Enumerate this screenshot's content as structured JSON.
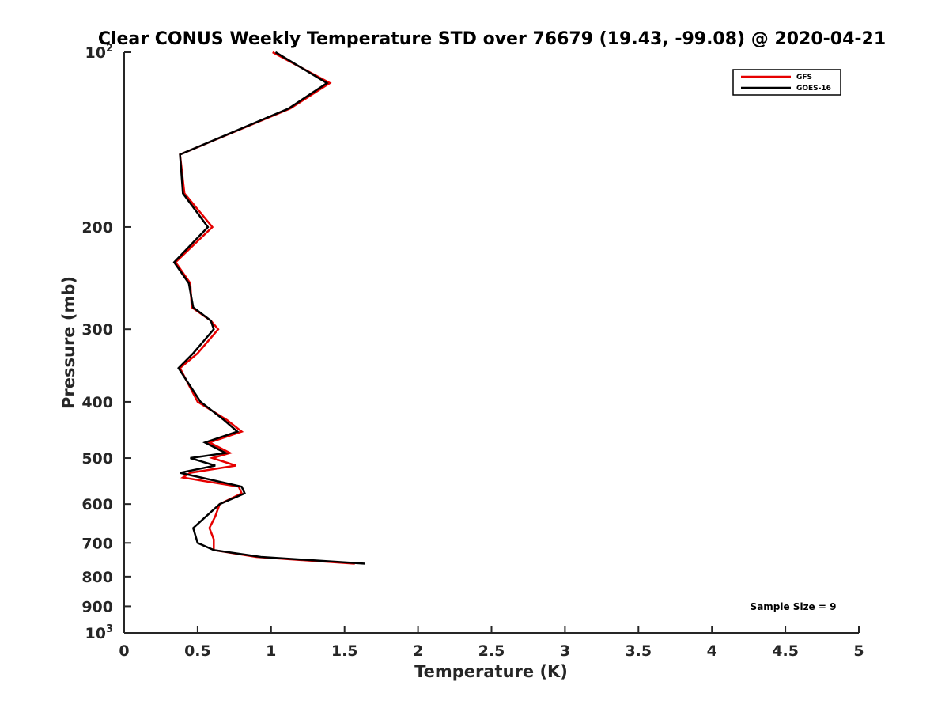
{
  "chart_data": {
    "type": "line",
    "title": "Clear CONUS Weekly Temperature STD over 76679 (19.43, -99.08) @ 2020-04-21",
    "xlabel": "Temperature (K)",
    "ylabel": "Pressure (mb)",
    "xlim": [
      0,
      5
    ],
    "ylim": [
      100,
      1000
    ],
    "y_scale": "log",
    "y_reversed": true,
    "grid": false,
    "legend_position": "top-right",
    "x_ticks": [
      "0",
      "0.5",
      "1",
      "1.5",
      "2",
      "2.5",
      "3",
      "3.5",
      "4",
      "4.5",
      "5"
    ],
    "y_ticks": [
      {
        "value": 100,
        "base": "10",
        "exp": "2"
      },
      {
        "value": 200,
        "label": "200"
      },
      {
        "value": 300,
        "label": "300"
      },
      {
        "value": 400,
        "label": "400"
      },
      {
        "value": 500,
        "label": "500"
      },
      {
        "value": 600,
        "label": "600"
      },
      {
        "value": 700,
        "label": "700"
      },
      {
        "value": 800,
        "label": "800"
      },
      {
        "value": 900,
        "label": "900"
      },
      {
        "value": 1000,
        "base": "10",
        "exp": "3"
      }
    ],
    "annotation": "Sample Size = 9",
    "series": [
      {
        "name": "GFS",
        "color": "#e60000",
        "points": [
          [
            1.01,
            100
          ],
          [
            1.4,
            113
          ],
          [
            1.13,
            125
          ],
          [
            0.38,
            150
          ],
          [
            0.41,
            175
          ],
          [
            0.6,
            200
          ],
          [
            0.35,
            230
          ],
          [
            0.45,
            250
          ],
          [
            0.46,
            275
          ],
          [
            0.59,
            290
          ],
          [
            0.64,
            300
          ],
          [
            0.5,
            330
          ],
          [
            0.38,
            350
          ],
          [
            0.5,
            400
          ],
          [
            0.7,
            430
          ],
          [
            0.8,
            450
          ],
          [
            0.58,
            470
          ],
          [
            0.72,
            490
          ],
          [
            0.6,
            500
          ],
          [
            0.76,
            515
          ],
          [
            0.45,
            530
          ],
          [
            0.4,
            540
          ],
          [
            0.78,
            560
          ],
          [
            0.8,
            575
          ],
          [
            0.65,
            600
          ],
          [
            0.62,
            630
          ],
          [
            0.58,
            660
          ],
          [
            0.61,
            690
          ],
          [
            0.61,
            720
          ],
          [
            0.9,
            740
          ],
          [
            1.57,
            760
          ]
        ]
      },
      {
        "name": "GOES-16",
        "color": "#000000",
        "points": [
          [
            1.03,
            100
          ],
          [
            1.38,
            113
          ],
          [
            1.12,
            125
          ],
          [
            0.38,
            150
          ],
          [
            0.4,
            175
          ],
          [
            0.57,
            200
          ],
          [
            0.34,
            230
          ],
          [
            0.44,
            250
          ],
          [
            0.47,
            275
          ],
          [
            0.59,
            290
          ],
          [
            0.61,
            300
          ],
          [
            0.47,
            330
          ],
          [
            0.37,
            350
          ],
          [
            0.52,
            400
          ],
          [
            0.68,
            430
          ],
          [
            0.77,
            450
          ],
          [
            0.55,
            470
          ],
          [
            0.69,
            490
          ],
          [
            0.45,
            500
          ],
          [
            0.62,
            515
          ],
          [
            0.38,
            530
          ],
          [
            0.8,
            560
          ],
          [
            0.82,
            575
          ],
          [
            0.65,
            600
          ],
          [
            0.47,
            660
          ],
          [
            0.5,
            700
          ],
          [
            0.61,
            720
          ],
          [
            0.93,
            740
          ],
          [
            1.64,
            760
          ]
        ]
      }
    ]
  }
}
